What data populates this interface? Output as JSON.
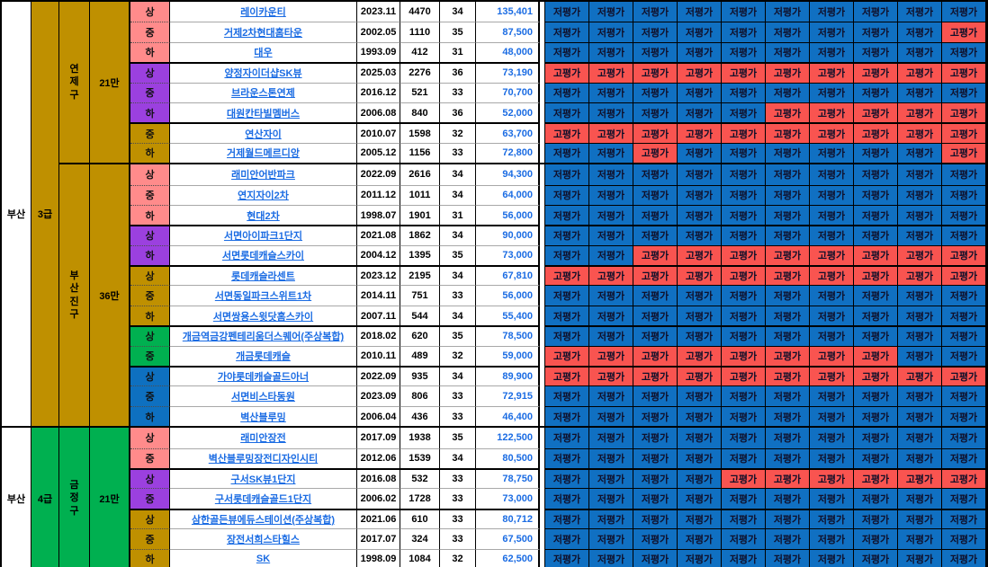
{
  "colors": {
    "gold": "#BF9000",
    "green": "#00B050",
    "pink": "#FF8B8B",
    "purple": "#9B40DF",
    "blue": "#0E70C0",
    "eval_low_bg": "#1070C2",
    "eval_high_bg": "#F95450",
    "link_blue": "#1B6CE3"
  },
  "legend": {
    "low": "저평가",
    "high": "고평가"
  },
  "sections": [
    {
      "city": "부산",
      "grade": "3급",
      "grade_color": "gold",
      "districts": [
        {
          "name": "연\n제\n구",
          "population": "21만",
          "color": "gold",
          "rows": [
            {
              "tier": "상",
              "tier_color": "pink",
              "gs": false,
              "name": "레이카운티",
              "built": "2023.11",
              "units": "4470",
              "size": "34",
              "price": "135,401",
              "evals": [
                "저평가",
                "저평가",
                "저평가",
                "저평가",
                "저평가",
                "저평가",
                "저평가",
                "저평가",
                "저평가",
                "저평가"
              ]
            },
            {
              "tier": "중",
              "tier_color": "pink",
              "gs": false,
              "name": "거제2차현대홈타운",
              "built": "2002.05",
              "units": "1110",
              "size": "35",
              "price": "87,500",
              "evals": [
                "저평가",
                "저평가",
                "저평가",
                "저평가",
                "저평가",
                "저평가",
                "저평가",
                "저평가",
                "저평가",
                "고평가"
              ]
            },
            {
              "tier": "하",
              "tier_color": "pink",
              "gs": false,
              "name": "대우",
              "built": "1993.09",
              "units": "412",
              "size": "31",
              "price": "48,000",
              "evals": [
                "저평가",
                "저평가",
                "저평가",
                "저평가",
                "저평가",
                "저평가",
                "저평가",
                "저평가",
                "저평가",
                "저평가"
              ]
            },
            {
              "tier": "상",
              "tier_color": "purple",
              "gs": true,
              "name": "양정자이더샵SK뷰",
              "built": "2025.03",
              "units": "2276",
              "size": "36",
              "price": "73,190",
              "evals": [
                "고평가",
                "고평가",
                "고평가",
                "고평가",
                "고평가",
                "고평가",
                "고평가",
                "고평가",
                "고평가",
                "고평가"
              ]
            },
            {
              "tier": "중",
              "tier_color": "purple",
              "gs": false,
              "name": "브라운스톤연제",
              "built": "2016.12",
              "units": "521",
              "size": "33",
              "price": "70,700",
              "evals": [
                "저평가",
                "저평가",
                "저평가",
                "저평가",
                "저평가",
                "저평가",
                "저평가",
                "저평가",
                "저평가",
                "저평가"
              ]
            },
            {
              "tier": "하",
              "tier_color": "purple",
              "gs": false,
              "name": "대원칸타빌멤버스",
              "built": "2006.08",
              "units": "840",
              "size": "36",
              "price": "52,000",
              "evals": [
                "저평가",
                "저평가",
                "저평가",
                "저평가",
                "저평가",
                "고평가",
                "고평가",
                "고평가",
                "고평가",
                "고평가"
              ]
            },
            {
              "tier": "중",
              "tier_color": "gold",
              "gs": true,
              "name": "연산자이",
              "built": "2010.07",
              "units": "1598",
              "size": "32",
              "price": "63,700",
              "evals": [
                "고평가",
                "고평가",
                "고평가",
                "고평가",
                "고평가",
                "고평가",
                "고평가",
                "고평가",
                "고평가",
                "고평가"
              ]
            },
            {
              "tier": "하",
              "tier_color": "gold",
              "gs": false,
              "name": "거제월드메르디앙",
              "built": "2005.12",
              "units": "1156",
              "size": "33",
              "price": "72,800",
              "evals": [
                "저평가",
                "저평가",
                "고평가",
                "저평가",
                "저평가",
                "저평가",
                "저평가",
                "저평가",
                "저평가",
                "고평가"
              ]
            }
          ]
        },
        {
          "name": "부\n산\n진\n구",
          "population": "36만",
          "color": "gold",
          "rows": [
            {
              "tier": "상",
              "tier_color": "pink",
              "gs": false,
              "name": "래미안어반파크",
              "built": "2022.09",
              "units": "2616",
              "size": "34",
              "price": "94,300",
              "evals": [
                "저평가",
                "저평가",
                "저평가",
                "저평가",
                "저평가",
                "저평가",
                "저평가",
                "저평가",
                "저평가",
                "저평가"
              ]
            },
            {
              "tier": "중",
              "tier_color": "pink",
              "gs": false,
              "name": "연지자이2차",
              "built": "2011.12",
              "units": "1011",
              "size": "34",
              "price": "64,000",
              "evals": [
                "저평가",
                "저평가",
                "저평가",
                "저평가",
                "저평가",
                "저평가",
                "저평가",
                "저평가",
                "저평가",
                "저평가"
              ]
            },
            {
              "tier": "하",
              "tier_color": "pink",
              "gs": false,
              "name": "현대2차",
              "built": "1998.07",
              "units": "1901",
              "size": "31",
              "price": "56,000",
              "evals": [
                "저평가",
                "저평가",
                "저평가",
                "저평가",
                "저평가",
                "저평가",
                "저평가",
                "저평가",
                "저평가",
                "저평가"
              ]
            },
            {
              "tier": "상",
              "tier_color": "purple",
              "gs": true,
              "name": "서면아이파크1단지",
              "built": "2021.08",
              "units": "1862",
              "size": "34",
              "price": "90,000",
              "evals": [
                "저평가",
                "저평가",
                "저평가",
                "저평가",
                "저평가",
                "저평가",
                "저평가",
                "저평가",
                "저평가",
                "저평가"
              ]
            },
            {
              "tier": "하",
              "tier_color": "purple",
              "gs": false,
              "name": "서면롯데캐슬스카이",
              "built": "2004.12",
              "units": "1395",
              "size": "35",
              "price": "73,000",
              "evals": [
                "저평가",
                "저평가",
                "고평가",
                "고평가",
                "고평가",
                "고평가",
                "고평가",
                "고평가",
                "고평가",
                "고평가"
              ]
            },
            {
              "tier": "상",
              "tier_color": "gold",
              "gs": true,
              "name": "롯데캐슬라센트",
              "built": "2023.12",
              "units": "2195",
              "size": "34",
              "price": "67,810",
              "evals": [
                "고평가",
                "고평가",
                "고평가",
                "고평가",
                "고평가",
                "고평가",
                "고평가",
                "고평가",
                "고평가",
                "고평가"
              ]
            },
            {
              "tier": "중",
              "tier_color": "gold",
              "gs": false,
              "name": "서면동일파크스위트1차",
              "built": "2014.11",
              "units": "751",
              "size": "33",
              "price": "56,000",
              "evals": [
                "저평가",
                "저평가",
                "저평가",
                "저평가",
                "저평가",
                "저평가",
                "저평가",
                "저평가",
                "저평가",
                "저평가"
              ]
            },
            {
              "tier": "하",
              "tier_color": "gold",
              "gs": false,
              "name": "서면쌍용스윗닷홈스카이",
              "built": "2007.11",
              "units": "544",
              "size": "34",
              "price": "55,400",
              "evals": [
                "저평가",
                "저평가",
                "저평가",
                "저평가",
                "저평가",
                "저평가",
                "저평가",
                "저평가",
                "저평가",
                "저평가"
              ]
            },
            {
              "tier": "상",
              "tier_color": "green",
              "gs": true,
              "name": "개금역금강펜테리움더스퀘어(주상복합)",
              "built": "2018.02",
              "units": "620",
              "size": "35",
              "price": "78,500",
              "evals": [
                "저평가",
                "저평가",
                "저평가",
                "저평가",
                "저평가",
                "저평가",
                "저평가",
                "저평가",
                "저평가",
                "저평가"
              ]
            },
            {
              "tier": "중",
              "tier_color": "green",
              "gs": false,
              "name": "개금롯데캐슬",
              "built": "2010.11",
              "units": "489",
              "size": "32",
              "price": "59,000",
              "evals": [
                "고평가",
                "고평가",
                "고평가",
                "고평가",
                "고평가",
                "고평가",
                "고평가",
                "고평가",
                "저평가",
                "저평가"
              ]
            },
            {
              "tier": "상",
              "tier_color": "blue",
              "gs": true,
              "name": "가야롯데캐슬골드아너",
              "built": "2022.09",
              "units": "935",
              "size": "34",
              "price": "89,900",
              "evals": [
                "고평가",
                "고평가",
                "고평가",
                "고평가",
                "고평가",
                "고평가",
                "고평가",
                "고평가",
                "고평가",
                "고평가"
              ]
            },
            {
              "tier": "중",
              "tier_color": "blue",
              "gs": false,
              "name": "서면비스타동원",
              "built": "2023.09",
              "units": "806",
              "size": "33",
              "price": "72,915",
              "evals": [
                "저평가",
                "저평가",
                "저평가",
                "저평가",
                "저평가",
                "저평가",
                "저평가",
                "저평가",
                "저평가",
                "저평가"
              ]
            },
            {
              "tier": "하",
              "tier_color": "blue",
              "gs": false,
              "name": "벽산블루밍",
              "built": "2006.04",
              "units": "436",
              "size": "33",
              "price": "46,400",
              "evals": [
                "저평가",
                "저평가",
                "저평가",
                "저평가",
                "저평가",
                "저평가",
                "저평가",
                "저평가",
                "저평가",
                "저평가"
              ]
            }
          ]
        }
      ]
    },
    {
      "city": "부산",
      "grade": "4급",
      "grade_color": "green",
      "districts": [
        {
          "name": "금\n정\n구",
          "population": "21만",
          "color": "green",
          "rows": [
            {
              "tier": "상",
              "tier_color": "pink",
              "gs": false,
              "name": "래미안장전",
              "built": "2017.09",
              "units": "1938",
              "size": "35",
              "price": "122,500",
              "evals": [
                "저평가",
                "저평가",
                "저평가",
                "저평가",
                "저평가",
                "저평가",
                "저평가",
                "저평가",
                "저평가",
                "저평가"
              ]
            },
            {
              "tier": "중",
              "tier_color": "pink",
              "gs": false,
              "name": "벽산블루밍장전디자인시티",
              "built": "2012.06",
              "units": "1539",
              "size": "34",
              "price": "80,500",
              "evals": [
                "저평가",
                "저평가",
                "저평가",
                "저평가",
                "저평가",
                "저평가",
                "저평가",
                "저평가",
                "저평가",
                "저평가"
              ]
            },
            {
              "tier": "상",
              "tier_color": "purple",
              "gs": true,
              "name": "구서SK뷰1단지",
              "built": "2016.08",
              "units": "532",
              "size": "33",
              "price": "78,750",
              "evals": [
                "저평가",
                "저평가",
                "저평가",
                "저평가",
                "고평가",
                "고평가",
                "고평가",
                "고평가",
                "고평가",
                "고평가"
              ]
            },
            {
              "tier": "중",
              "tier_color": "purple",
              "gs": false,
              "name": "구서롯데캐슬골드1단지",
              "built": "2006.02",
              "units": "1728",
              "size": "33",
              "price": "73,000",
              "evals": [
                "저평가",
                "저평가",
                "저평가",
                "저평가",
                "저평가",
                "저평가",
                "저평가",
                "저평가",
                "저평가",
                "저평가"
              ]
            },
            {
              "tier": "상",
              "tier_color": "gold",
              "gs": true,
              "name": "삼한골든뷰에듀스테이션(주상복합)",
              "built": "2021.06",
              "units": "610",
              "size": "33",
              "price": "80,712",
              "evals": [
                "저평가",
                "저평가",
                "저평가",
                "저평가",
                "저평가",
                "저평가",
                "저평가",
                "저평가",
                "저평가",
                "저평가"
              ]
            },
            {
              "tier": "중",
              "tier_color": "gold",
              "gs": false,
              "name": "장전서희스타힐스",
              "built": "2017.07",
              "units": "324",
              "size": "33",
              "price": "67,500",
              "evals": [
                "저평가",
                "저평가",
                "저평가",
                "저평가",
                "저평가",
                "저평가",
                "저평가",
                "저평가",
                "저평가",
                "저평가"
              ]
            },
            {
              "tier": "하",
              "tier_color": "gold",
              "gs": false,
              "name": "SK",
              "built": "1998.09",
              "units": "1084",
              "size": "32",
              "price": "62,500",
              "evals": [
                "저평가",
                "저평가",
                "저평가",
                "저평가",
                "저평가",
                "저평가",
                "저평가",
                "저평가",
                "저평가",
                "저평가"
              ]
            }
          ]
        }
      ]
    }
  ]
}
